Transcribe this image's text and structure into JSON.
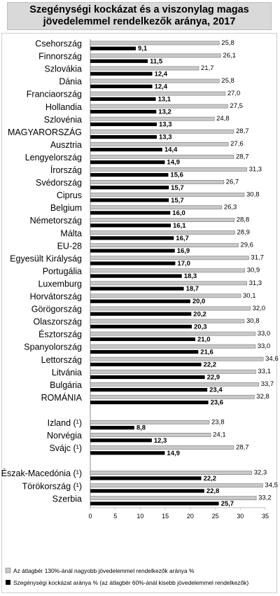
{
  "chart_data": {
    "type": "bar",
    "orientation": "horizontal",
    "title": "Szegénységi kockázat és a viszonylag magas jövedelemmel rendelkezők aránya, 2017",
    "categories": [
      "Csehország",
      "Finnország",
      "Szlovákia",
      "Dánia",
      "Franciaország",
      "Hollandia",
      "Szlovénia",
      "MAGYARORSZÁG",
      "Ausztria",
      "Lengyelország",
      "Írország",
      "Svédország",
      "Ciprus",
      "Belgium",
      "Németország",
      "Málta",
      "EU-28",
      "Egyesült Királyság",
      "Portugália",
      "Luxemburg",
      "Horvátország",
      "Görögország",
      "Olaszország",
      "Észtország",
      "Spanyolország",
      "Lettország",
      "Litvánia",
      "Bulgária",
      "ROMÁNIA",
      "",
      "Izland (¹)",
      "Norvégia",
      "Svájc (¹)",
      "",
      "Észak-Macedónia (¹)",
      "Törökország (¹)",
      "Szerbia"
    ],
    "series": [
      {
        "name": "Az átlagbér 130%-ánál nagyobb jövedelemmel rendelkezők aránya %",
        "color": "#c8c8c8",
        "values": [
          25.8,
          26.1,
          21.7,
          25.8,
          27.0,
          27.5,
          24.8,
          28.7,
          27.6,
          28.7,
          31.3,
          26.7,
          30.8,
          26.3,
          28.8,
          28.9,
          29.6,
          31.7,
          30.9,
          31.3,
          30.1,
          32.0,
          30.8,
          33.0,
          33.0,
          34.6,
          33.1,
          33.7,
          32.8,
          null,
          23.8,
          24.1,
          28.7,
          null,
          32.3,
          34.5,
          33.2
        ],
        "labels": [
          "25,8",
          "26,1",
          "21,7",
          "25,8",
          "27,0",
          "27,5",
          "24,8",
          "28,7",
          "27,6",
          "28,7",
          "31,3",
          "26,7",
          "30,8",
          "26,3",
          "28,8",
          "28,9",
          "29,6",
          "31,7",
          "30,9",
          "31,3",
          "30,1",
          "32,0",
          "30,8",
          "33,0",
          "33,0",
          "34,6",
          "33,1",
          "33,7",
          "32,8",
          "",
          "23,8",
          "24,1",
          "28,7",
          "",
          "32,3",
          "34,5",
          "33,2"
        ]
      },
      {
        "name": "Szegénységi kockázat aránya % (az átlagbér 60%-ánál kisebb jövedelemmel rendelkezők)",
        "color": "#000000",
        "values": [
          9.1,
          11.5,
          12.4,
          12.4,
          13.1,
          13.2,
          13.3,
          13.3,
          14.4,
          14.9,
          15.6,
          15.7,
          15.7,
          16.0,
          16.1,
          16.7,
          16.9,
          17.0,
          18.3,
          18.7,
          20.0,
          20.2,
          20.3,
          21.0,
          21.6,
          22.2,
          22.9,
          23.4,
          23.6,
          null,
          8.8,
          12.3,
          14.9,
          null,
          22.2,
          22.8,
          25.7
        ],
        "labels": [
          "9,1",
          "11,5",
          "12,4",
          "12,4",
          "13,1",
          "13,2",
          "13,3",
          "13,3",
          "14,4",
          "14,9",
          "15,6",
          "15,7",
          "15,7",
          "16,0",
          "16,1",
          "16,7",
          "16,9",
          "17,0",
          "18,3",
          "18,7",
          "20,0",
          "20,2",
          "20,3",
          "21,0",
          "21,6",
          "22,2",
          "22,9",
          "23,4",
          "23,6",
          "",
          "8,8",
          "12,3",
          "14,9",
          "",
          "22,2",
          "22,8",
          "25,7"
        ]
      }
    ],
    "xlim": [
      0,
      35
    ],
    "xticks": [
      0,
      5,
      10,
      15,
      20,
      25,
      30,
      35
    ],
    "grid": false,
    "legend_position": "bottom"
  }
}
